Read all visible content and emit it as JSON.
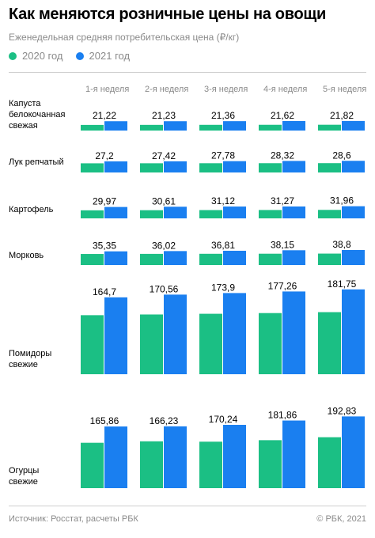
{
  "title": "Как меняются розничные цены на овощи",
  "subtitle": "Еженедельная средняя потребительская цена (₽/кг)",
  "legend": [
    {
      "label": "2020 год",
      "color": "#1bbf84"
    },
    {
      "label": "2021 год",
      "color": "#1a7ff0"
    }
  ],
  "footer": {
    "source": "Источник:  Росстат, расчеты РБК",
    "copyright": "©  РБК, 2021"
  },
  "chart_data": {
    "type": "bar",
    "categories": [
      "1-я неделя",
      "2-я неделя",
      "3-я неделя",
      "4-я неделя",
      "5-я неделя"
    ],
    "rows": [
      {
        "label": [
          "Капуста",
          "белокочанная",
          "свежая"
        ],
        "v2020": [
          12.8,
          12.9,
          13.0,
          13.1,
          13.2
        ],
        "v2021": [
          21.22,
          21.23,
          21.36,
          21.62,
          21.82
        ]
      },
      {
        "label": [
          "Лук репчатый"
        ],
        "v2020": [
          22.5,
          22.6,
          22.7,
          22.8,
          22.9
        ],
        "v2021": [
          27.2,
          27.42,
          27.78,
          28.32,
          28.6
        ]
      },
      {
        "label": [
          "Картофель"
        ],
        "v2020": [
          21.2,
          21.5,
          21.8,
          22.0,
          22.3
        ],
        "v2021": [
          29.97,
          30.61,
          31.12,
          31.27,
          31.96
        ]
      },
      {
        "label": [
          "Морковь"
        ],
        "v2020": [
          28.5,
          28.8,
          29.0,
          29.2,
          29.5
        ],
        "v2021": [
          35.35,
          36.02,
          36.81,
          38.15,
          38.8
        ]
      },
      {
        "label": [
          "Помидоры",
          "свежие"
        ],
        "v2020": [
          126.5,
          128.0,
          129.5,
          131.0,
          133.0
        ],
        "v2021": [
          164.7,
          170.56,
          173.9,
          177.26,
          181.75
        ]
      },
      {
        "label": [
          "Огурцы",
          "свежие"
        ],
        "v2020": [
          122.0,
          126.0,
          125.0,
          129.0,
          137.0
        ],
        "v2021": [
          165.86,
          166.23,
          170.24,
          181.86,
          192.83
        ]
      }
    ],
    "labels_2021": [
      [
        "21,22",
        "21,23",
        "21,36",
        "21,62",
        "21,82"
      ],
      [
        "27,2",
        "27,42",
        "27,78",
        "28,32",
        "28,6"
      ],
      [
        "29,97",
        "30,61",
        "31,12",
        "31,27",
        "31,96"
      ],
      [
        "35,35",
        "36,02",
        "36,81",
        "38,15",
        "38,8"
      ],
      [
        "164,7",
        "170,56",
        "173,9",
        "177,26",
        "181,75"
      ],
      [
        "165,86",
        "166,23",
        "170,24",
        "181,86",
        "192,83"
      ]
    ]
  }
}
